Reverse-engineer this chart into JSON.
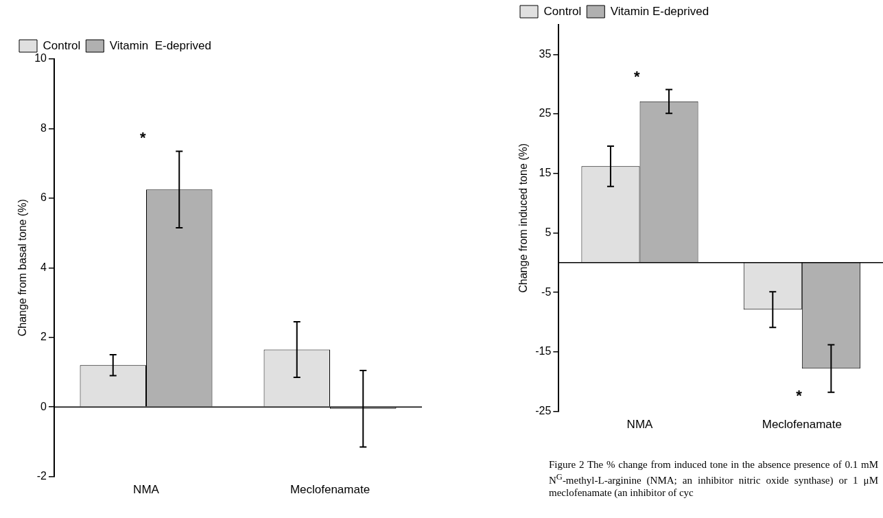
{
  "chart_data": [
    {
      "type": "bar",
      "ylabel": "Change from basal tone (%)",
      "categories": [
        "NMA",
        "Meclofenamate"
      ],
      "ylim": [
        -2,
        10
      ],
      "yticks": [
        -2,
        0,
        2,
        4,
        6,
        8,
        10
      ],
      "legend": "top left",
      "series": [
        {
          "name": "Control",
          "color": "#e0e0e0",
          "values": [
            1.2,
            1.65
          ],
          "errors": [
            0.3,
            0.8
          ]
        },
        {
          "name": "Vitamin  E-deprived",
          "color": "#b0b0b0",
          "values": [
            6.25,
            -0.05
          ],
          "errors": [
            1.1,
            1.1
          ]
        }
      ],
      "annotations": [
        "*"
      ]
    },
    {
      "type": "bar",
      "ylabel": "Change from induced tone (%)",
      "categories": [
        "NMA",
        "Meclofenamate"
      ],
      "ylim": [
        -25,
        40
      ],
      "yticks": [
        -25,
        -15,
        -5,
        5,
        15,
        25,
        35
      ],
      "legend": "top left",
      "series": [
        {
          "name": "Control",
          "color": "#e0e0e0",
          "values": [
            16.2,
            -7.9
          ],
          "errors": [
            3.4,
            3
          ]
        },
        {
          "name": "Vitamin E-deprived",
          "color": "#b0b0b0",
          "values": [
            27.1,
            -17.8
          ],
          "errors": [
            2,
            4
          ]
        }
      ],
      "annotations": [
        "*",
        "*",
        "Figure 2  The % change from induced tone in the absence presence of 0.1 mM N$^{G}$-methyl-L-arginine (NMA; an inhibitor nitric oxide synthase) or 1 μM meclofenamate (an inhibitor of cyc"
      ]
    }
  ]
}
